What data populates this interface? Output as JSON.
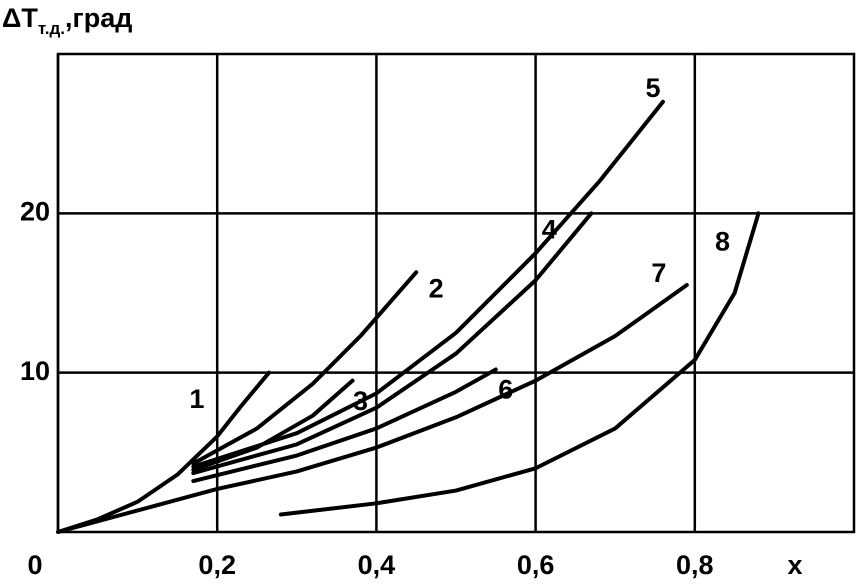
{
  "chart_data": {
    "type": "line",
    "y_label": {
      "main": "ΔT",
      "sub": "т.д.",
      "suffix": ",град"
    },
    "x_label": "x",
    "xlim": [
      0,
      1
    ],
    "ylim": [
      0,
      30
    ],
    "xticks": [
      0,
      {
        "value": 0.2,
        "label": "0,2"
      },
      {
        "value": 0.4,
        "label": "0,4"
      },
      {
        "value": 0.6,
        "label": "0,6"
      },
      {
        "value": 0.8,
        "label": "0,8"
      }
    ],
    "yticks": [
      10,
      20
    ],
    "grid": true,
    "color": "#000000",
    "series": [
      {
        "name": "1",
        "x": [
          0,
          0.05,
          0.1,
          0.15,
          0.2,
          0.23,
          0.265
        ],
        "values": [
          0,
          0.8,
          1.9,
          3.6,
          6,
          7.9,
          10
        ]
      },
      {
        "name": "2",
        "x": [
          0.17,
          0.25,
          0.32,
          0.38,
          0.45
        ],
        "values": [
          4.3,
          6.5,
          9.3,
          12.3,
          16.3
        ]
      },
      {
        "name": "3",
        "x": [
          0.17,
          0.25,
          0.32,
          0.37
        ],
        "values": [
          3.9,
          5.3,
          7.3,
          9.5
        ]
      },
      {
        "name": "4",
        "x": [
          0.17,
          0.3,
          0.4,
          0.5,
          0.6,
          0.67
        ],
        "values": [
          3.7,
          5.5,
          7.8,
          11.2,
          15.8,
          20
        ]
      },
      {
        "name": "5",
        "x": [
          0.17,
          0.3,
          0.4,
          0.5,
          0.6,
          0.68,
          0.76
        ],
        "values": [
          4.1,
          6.2,
          8.7,
          12.5,
          17.5,
          22,
          27
        ]
      },
      {
        "name": "6",
        "x": [
          0.17,
          0.3,
          0.4,
          0.5,
          0.55
        ],
        "values": [
          3.2,
          4.8,
          6.5,
          8.8,
          10.2
        ]
      },
      {
        "name": "7",
        "x": [
          0,
          0.2,
          0.3,
          0.4,
          0.5,
          0.6,
          0.7,
          0.79
        ],
        "values": [
          0,
          2.7,
          3.8,
          5.3,
          7.2,
          9.5,
          12.3,
          15.5
        ]
      },
      {
        "name": "8",
        "x": [
          0.28,
          0.4,
          0.5,
          0.6,
          0.7,
          0.8,
          0.85,
          0.88
        ],
        "values": [
          1.1,
          1.8,
          2.6,
          4,
          6.5,
          10.8,
          15,
          20
        ]
      }
    ]
  }
}
